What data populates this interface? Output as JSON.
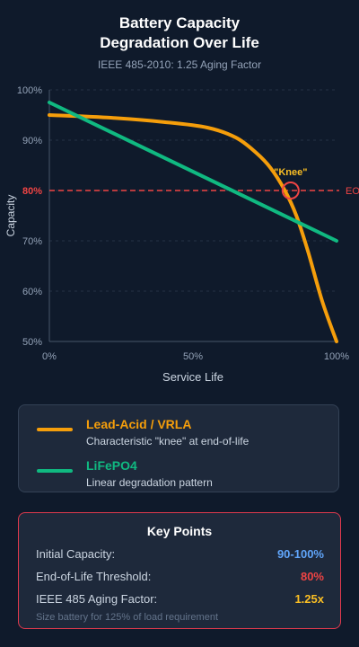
{
  "title_line1": "Battery Capacity",
  "title_line2": "Degradation Over Life",
  "subtitle": "IEEE 485-2010: 1.25 Aging Factor",
  "colors": {
    "lead_acid": "#f59e0b",
    "lifepo4": "#10b981",
    "eol": "#ef4444",
    "blue": "#60a5fa",
    "yellow": "#fbbf24"
  },
  "chart_data": {
    "type": "line",
    "xlabel": "Service Life",
    "ylabel": "Capacity",
    "xlim": [
      0,
      100
    ],
    "ylim": [
      50,
      100
    ],
    "x_ticks": [
      {
        "value": 0,
        "label": "0%"
      },
      {
        "value": 50,
        "label": "50%"
      },
      {
        "value": 100,
        "label": "100%"
      }
    ],
    "y_ticks": [
      {
        "value": 100,
        "label": "100%"
      },
      {
        "value": 90,
        "label": "90%"
      },
      {
        "value": 80,
        "label": "80%"
      },
      {
        "value": 70,
        "label": "70%"
      },
      {
        "value": 60,
        "label": "60%"
      },
      {
        "value": 50,
        "label": "50%"
      }
    ],
    "grid": true,
    "series": [
      {
        "name": "Lead-Acid / VRLA",
        "points": [
          [
            0,
            95
          ],
          [
            20,
            94.5
          ],
          [
            40,
            93.6
          ],
          [
            55,
            92.5
          ],
          [
            65,
            90.5
          ],
          [
            72,
            87.5
          ],
          [
            77,
            84.5
          ],
          [
            82,
            80
          ],
          [
            86,
            75
          ],
          [
            90,
            68
          ],
          [
            95,
            58
          ],
          [
            100,
            50
          ]
        ]
      },
      {
        "name": "LiFePO4",
        "points": [
          [
            0,
            97.5
          ],
          [
            100,
            70
          ]
        ]
      }
    ],
    "eol_line": {
      "value": 80,
      "label": "EOL",
      "tick_label": "80%"
    },
    "annotation": {
      "x": 84,
      "y": 80,
      "text": "\"Knee\""
    }
  },
  "legend": {
    "items": [
      {
        "name": "Lead-Acid / VRLA",
        "desc": "Characteristic \"knee\" at end-of-life"
      },
      {
        "name": "LiFePO4",
        "desc": "Linear degradation pattern"
      }
    ]
  },
  "key_points": {
    "title": "Key Points",
    "rows": [
      {
        "label": "Initial Capacity:",
        "value": "90-100%",
        "color": "#60a5fa"
      },
      {
        "label": "End-of-Life Threshold:",
        "value": "80%",
        "color": "#ef4444"
      },
      {
        "label": "IEEE 485 Aging Factor:",
        "value": "1.25x",
        "color": "#fbbf24"
      }
    ],
    "note": "Size battery for 125% of load requirement"
  }
}
